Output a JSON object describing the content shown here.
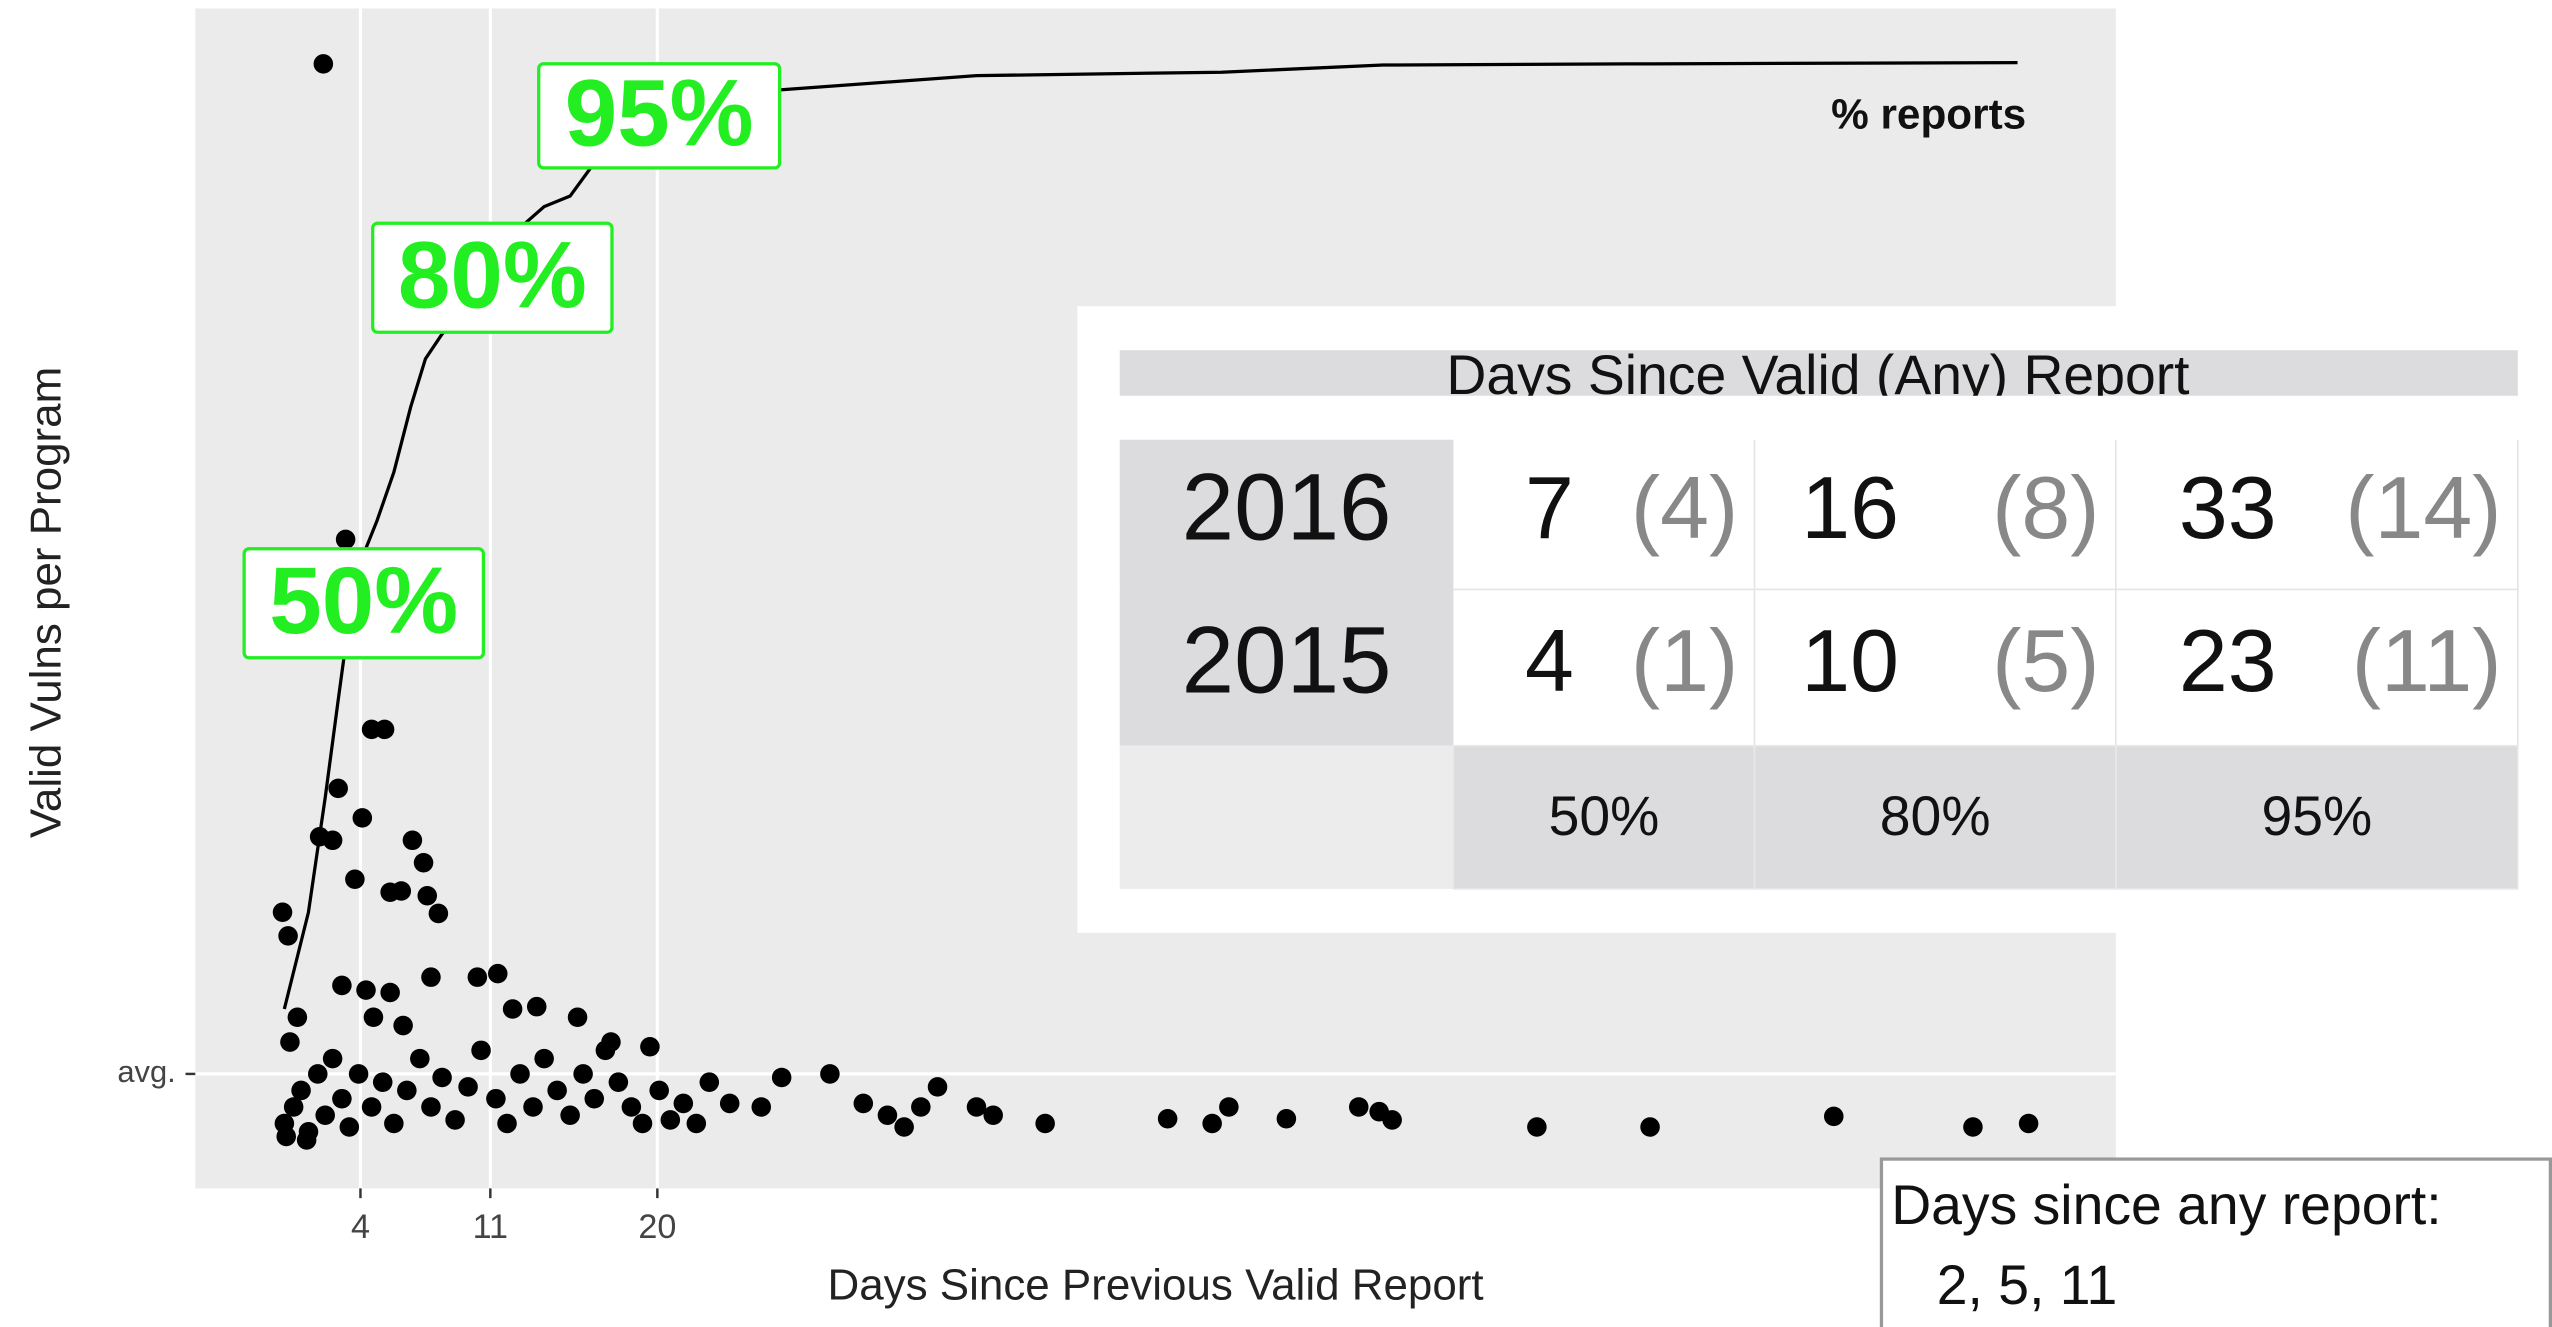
{
  "chart_data": {
    "type": "scatter",
    "xlabel": "Days Since Previous Valid Report",
    "ylabel": "Valid Vulns per Program",
    "xlim": [
      -4.9,
      98.6
    ],
    "ylim": [
      0,
      100
    ],
    "xticks": [
      4,
      11,
      20
    ],
    "yticks": [
      {
        "value": 9.7,
        "label": "avg."
      }
    ],
    "grid": true,
    "color": "#000000",
    "x": [
      2.0,
      3.2,
      4.6,
      5.3,
      2.8,
      1.8,
      2.5,
      4.1,
      -0.2,
      0.1,
      3.7,
      5.6,
      6.2,
      6.8,
      7.4,
      7.6,
      8.2,
      3.0,
      4.3,
      5.6,
      7.8,
      10.3,
      11.4,
      12.2,
      13.5,
      15.7,
      17.5,
      19.6,
      22.8,
      26.7,
      29.3,
      31.1,
      32.4,
      33.3,
      34.2,
      35.1,
      37.2,
      38.1,
      40.9,
      47.5,
      49.9,
      50.8,
      53.9,
      57.8,
      58.9,
      59.6,
      67.4,
      73.5,
      83.4,
      90.9,
      93.9,
      -0.1,
      0.4,
      0.8,
      1.2,
      1.7,
      2.1,
      2.5,
      3.0,
      3.4,
      3.9,
      4.6,
      5.2,
      5.8,
      6.5,
      7.2,
      7.8,
      8.4,
      9.1,
      9.8,
      10.5,
      11.3,
      11.9,
      12.6,
      13.3,
      13.9,
      14.6,
      15.3,
      16.0,
      16.6,
      17.2,
      17.9,
      18.6,
      19.2,
      20.1,
      20.7,
      21.4,
      22.1,
      23.9,
      25.6,
      0.2,
      0.6,
      1.1,
      0.0,
      4.7,
      6.3
    ],
    "values": [
      95.3,
      55.0,
      38.9,
      38.9,
      33.9,
      29.8,
      29.5,
      31.4,
      23.4,
      21.4,
      26.2,
      25.1,
      25.2,
      29.5,
      27.6,
      24.8,
      23.3,
      17.2,
      16.8,
      16.6,
      17.9,
      17.9,
      18.2,
      15.2,
      15.4,
      14.5,
      12.4,
      12.0,
      9.0,
      9.4,
      9.7,
      7.2,
      6.2,
      5.2,
      6.9,
      8.6,
      6.9,
      6.2,
      5.5,
      5.9,
      5.5,
      6.9,
      5.9,
      6.9,
      6.5,
      5.8,
      5.2,
      5.2,
      6.1,
      5.2,
      5.5,
      5.5,
      6.9,
      8.3,
      4.8,
      9.7,
      6.2,
      11.0,
      7.6,
      5.2,
      9.7,
      6.9,
      9.0,
      5.5,
      8.3,
      11.0,
      6.9,
      9.4,
      5.8,
      8.6,
      11.7,
      7.6,
      5.5,
      9.7,
      6.9,
      11.0,
      8.3,
      6.2,
      9.7,
      7.6,
      11.7,
      9.0,
      6.9,
      5.5,
      8.3,
      5.8,
      7.2,
      5.5,
      7.2,
      6.9,
      12.4,
      14.5,
      4.1,
      4.4,
      14.5,
      13.8
    ],
    "line": {
      "name": "% reports",
      "color": "#000000",
      "x": [
        -0.1,
        1.2,
        2.1,
        2.8,
        3.4,
        4.0,
        4.9,
        5.8,
        6.7,
        7.5,
        8.4,
        9.3,
        10.9,
        12.6,
        13.9,
        15.3,
        16.6,
        18.3,
        21.4,
        26.7,
        37.2,
        50.4,
        59.1,
        72.3,
        93.3
      ],
      "values": [
        15.2,
        23.4,
        33.1,
        41.4,
        48.3,
        53.1,
        56.6,
        60.7,
        66.2,
        70.3,
        72.4,
        73.8,
        77.2,
        81.4,
        83.2,
        84.1,
        86.9,
        90.3,
        92.1,
        93.1,
        94.3,
        94.6,
        95.2,
        95.3,
        95.4
      ]
    },
    "annotations": [
      "50%",
      "80%",
      "95%"
    ],
    "annotation_color": "#22ee22"
  },
  "table": {
    "title": "Days Since Valid (Any) Report",
    "rows": [
      {
        "label": "2016",
        "cells": [
          [
            "7",
            "(4)"
          ],
          [
            "16",
            "(8)"
          ],
          [
            "33",
            "(14)"
          ]
        ]
      },
      {
        "label": "2015",
        "cells": [
          [
            "4",
            "(1)"
          ],
          [
            "10",
            "(5)"
          ],
          [
            "23",
            "(11)"
          ]
        ]
      }
    ],
    "footer": [
      "50%",
      "80%",
      "95%"
    ]
  },
  "note": {
    "title": "Days since any report:",
    "text": "2, 5, 11"
  }
}
